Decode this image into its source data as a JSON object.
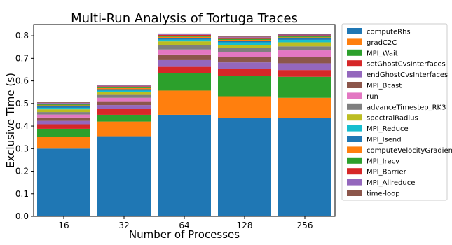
{
  "chart_data": {
    "type": "bar",
    "stacked": true,
    "title": "Multi-Run Analysis of Tortuga Traces",
    "xlabel": "Number of Processes",
    "ylabel": "Exclusive Time (s)",
    "categories": [
      "16",
      "32",
      "64",
      "128",
      "256"
    ],
    "ylim": [
      0,
      0.85
    ],
    "yticks": [
      "0.0",
      "0.1",
      "0.2",
      "0.3",
      "0.4",
      "0.5",
      "0.6",
      "0.7",
      "0.8"
    ],
    "legend_placement": "right, outside plot",
    "series": [
      {
        "name": "computeRhs",
        "color": "#1f77b4",
        "values": [
          0.3,
          0.355,
          0.45,
          0.435,
          0.435
        ]
      },
      {
        "name": "gradC2C",
        "color": "#ff7f0e",
        "values": [
          0.053,
          0.065,
          0.107,
          0.097,
          0.09
        ]
      },
      {
        "name": "MPI_Wait",
        "color": "#2ca02c",
        "values": [
          0.035,
          0.03,
          0.078,
          0.09,
          0.093
        ]
      },
      {
        "name": "setGhostCvsInterfaces",
        "color": "#d62728",
        "values": [
          0.02,
          0.025,
          0.027,
          0.03,
          0.03
        ]
      },
      {
        "name": "endGhostCvsInterfaces",
        "color": "#9467bd",
        "values": [
          0.015,
          0.018,
          0.03,
          0.03,
          0.03
        ]
      },
      {
        "name": "MPI_Bcast",
        "color": "#8c564b",
        "values": [
          0.015,
          0.017,
          0.025,
          0.025,
          0.027
        ]
      },
      {
        "name": "run",
        "color": "#e377c2",
        "values": [
          0.013,
          0.015,
          0.022,
          0.022,
          0.03
        ]
      },
      {
        "name": "advanceTimestep_RK3",
        "color": "#7f7f7f",
        "values": [
          0.011,
          0.013,
          0.02,
          0.018,
          0.018
        ]
      },
      {
        "name": "spectralRadius",
        "color": "#bcbd22",
        "values": [
          0.012,
          0.012,
          0.016,
          0.012,
          0.018
        ]
      },
      {
        "name": "MPI_Reduce",
        "color": "#17becf",
        "values": [
          0.007,
          0.007,
          0.008,
          0.012,
          0.011
        ]
      },
      {
        "name": "MPI_Isend",
        "color": "#1f77b4",
        "values": [
          0.006,
          0.006,
          0.007,
          0.006,
          0.006
        ]
      },
      {
        "name": "computeVelocityGradient",
        "color": "#ff7f0e",
        "values": [
          0.005,
          0.005,
          0.005,
          0.005,
          0.005
        ]
      },
      {
        "name": "MPI_Irecv",
        "color": "#2ca02c",
        "values": [
          0.004,
          0.004,
          0.005,
          0.004,
          0.004
        ]
      },
      {
        "name": "MPI_Barrier",
        "color": "#d62728",
        "values": [
          0.004,
          0.004,
          0.004,
          0.006,
          0.005
        ]
      },
      {
        "name": "MPI_Allreduce",
        "color": "#9467bd",
        "values": [
          0.003,
          0.003,
          0.003,
          0.003,
          0.003
        ]
      },
      {
        "name": "time-loop",
        "color": "#8c564b",
        "values": [
          0.003,
          0.003,
          0.003,
          0.003,
          0.003
        ]
      }
    ]
  }
}
